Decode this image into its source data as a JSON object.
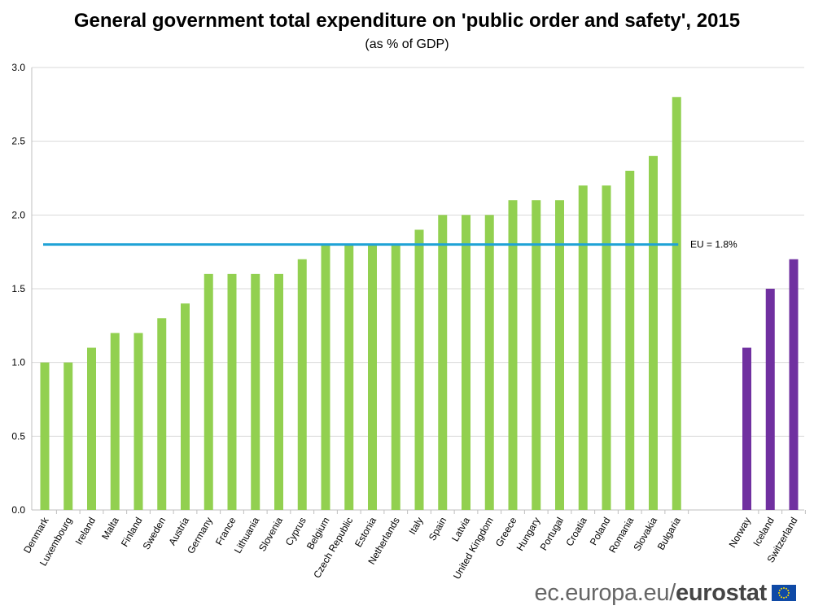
{
  "header": {
    "title": "General government total expenditure on 'public order and safety', 2015",
    "subtitle": "(as % of GDP)"
  },
  "footer": {
    "domain": "ec.europa.eu/",
    "brand": "eurostat",
    "flag_icon": "eu-flag-icon"
  },
  "chart_data": {
    "type": "bar",
    "title": "General government total expenditure on 'public order and safety', 2015",
    "subtitle": "(as % of GDP)",
    "xlabel": "",
    "ylabel": "",
    "ylim": [
      0,
      3.0
    ],
    "yticks": [
      0.0,
      0.5,
      1.0,
      1.5,
      2.0,
      2.5,
      3.0
    ],
    "grid": true,
    "categories": [
      "Denmark",
      "Luxembourg",
      "Ireland",
      "Malta",
      "Finland",
      "Sweden",
      "Austria",
      "Germany",
      "France",
      "Lithuania",
      "Slovenia",
      "Cyprus",
      "Belgium",
      "Czech Republic",
      "Estonia",
      "Netherlands",
      "Italy",
      "Spain",
      "Latvia",
      "United Kingdom",
      "Greece",
      "Hungary",
      "Portugal",
      "Croatia",
      "Poland",
      "Romania",
      "Slovakia",
      "Bulgaria",
      "Norway",
      "Iceland",
      "Switzerland"
    ],
    "values": [
      1.0,
      1.0,
      1.1,
      1.2,
      1.2,
      1.3,
      1.4,
      1.6,
      1.6,
      1.6,
      1.6,
      1.7,
      1.8,
      1.8,
      1.8,
      1.8,
      1.9,
      2.0,
      2.0,
      2.0,
      2.1,
      2.1,
      2.1,
      2.2,
      2.2,
      2.3,
      2.4,
      2.8,
      1.1,
      1.5,
      1.7
    ],
    "groups": [
      {
        "count": 28,
        "color": "#92d050"
      },
      {
        "count": 3,
        "color": "#7030a0"
      }
    ],
    "reference_line": {
      "value": 1.8,
      "label": "EU = 1.8%",
      "color": "#1fa2d6"
    }
  }
}
